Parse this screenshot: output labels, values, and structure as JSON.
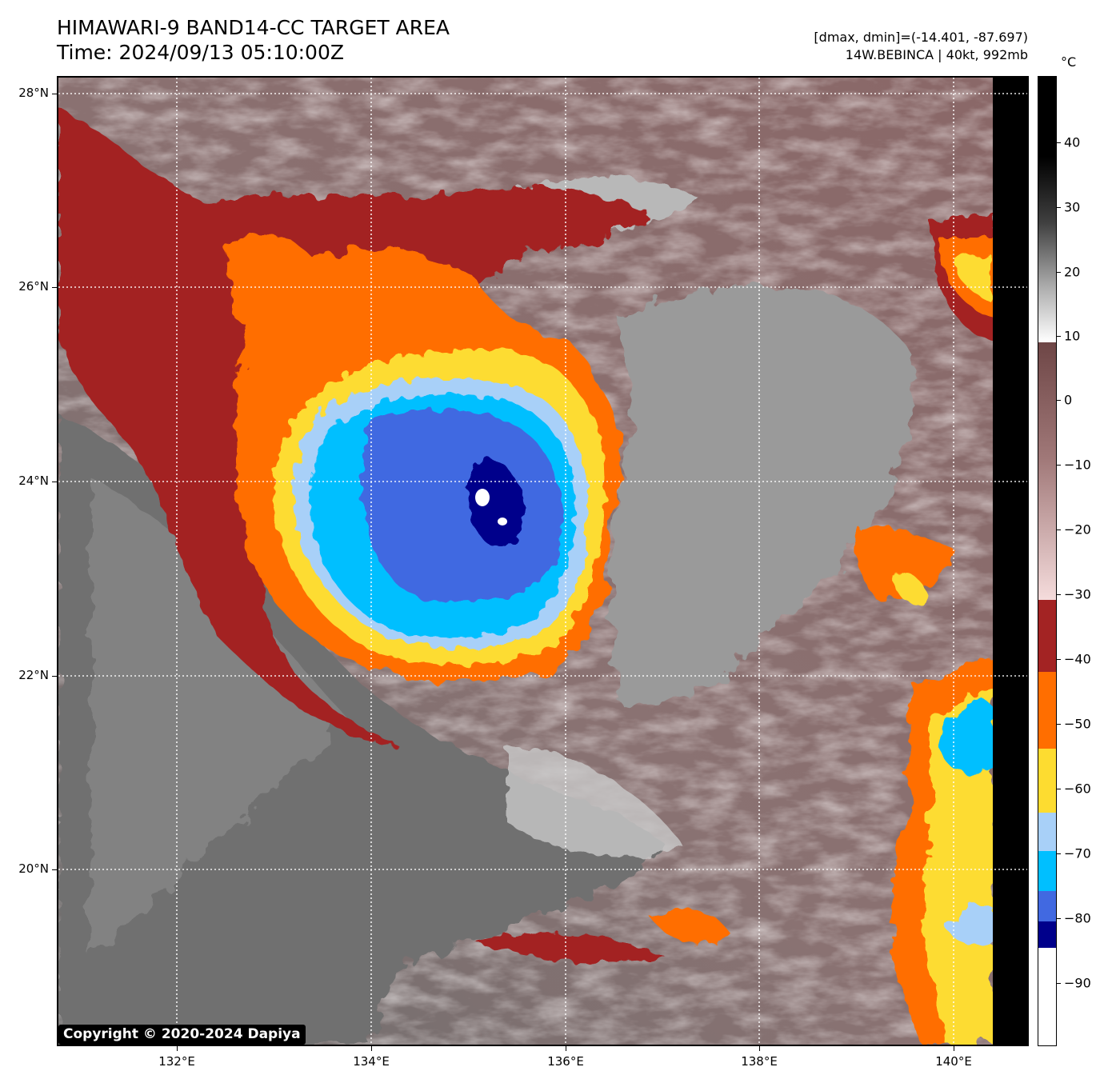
{
  "header": {
    "title_line1": "HIMAWARI-9 BAND14-CC TARGET AREA",
    "title_line2": "Time: 2024/09/13 05:10:00Z",
    "info_line1": "[dmax, dmin]=(-14.401, -87.697)",
    "info_line2": "14W.BEBINCA | 40kt, 992mb"
  },
  "map": {
    "lat_labels": [
      "28°N",
      "26°N",
      "24°N",
      "22°N",
      "20°N"
    ],
    "lon_labels": [
      "132°E",
      "134°E",
      "136°E",
      "138°E",
      "140°E"
    ],
    "storm_name": "14W.BEBINCA",
    "storm_center": {
      "lat": 23.7,
      "lon": 135.3
    },
    "gridlines": true
  },
  "colorbar": {
    "unit": "°C",
    "tick_labels": [
      "40",
      "30",
      "20",
      "10",
      "0",
      "−10",
      "−20",
      "−30",
      "−40",
      "−50",
      "−60",
      "−70",
      "−80",
      "−90"
    ],
    "color_bands": [
      {
        "range": "-30 to -40",
        "color": "#a32323"
      },
      {
        "range": "-40 to -52",
        "color": "#ff6e00"
      },
      {
        "range": "-52 to -62",
        "color": "#fddc30"
      },
      {
        "range": "-62 to -68",
        "color": "#a8d0f8"
      },
      {
        "range": "-68 to -75",
        "color": "#00bfff"
      },
      {
        "range": "-75 to -80",
        "color": "#4169e1"
      },
      {
        "range": "-80 to -84",
        "color": "#00008b"
      },
      {
        "range": "below -84",
        "color": "#ffffff"
      }
    ]
  },
  "copyright": "Copyright © 2020-2024 Dapiya"
}
